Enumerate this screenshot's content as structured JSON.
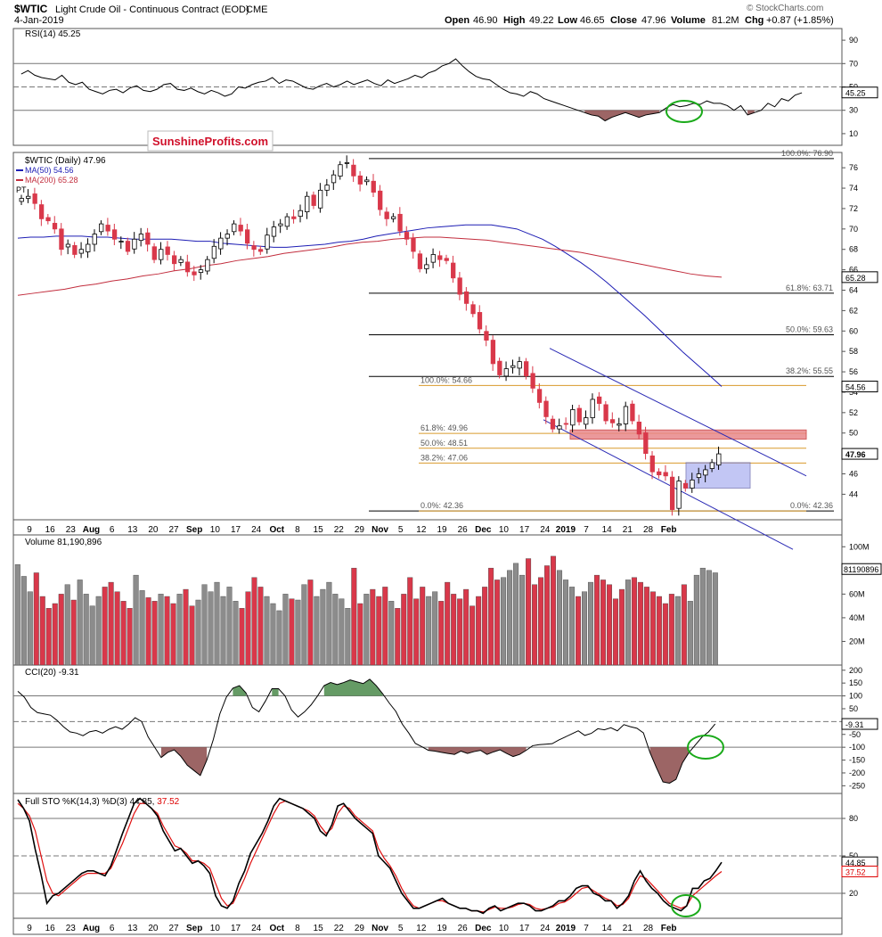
{
  "header": {
    "symbol": "$WTIC",
    "name": "Light Crude Oil - Continuous Contract (EOD)",
    "exchange": "CME",
    "watermark": "© StockCharts.com",
    "date": "4-Jan-2019",
    "open_label": "Open",
    "open": "46.90",
    "high_label": "High",
    "high": "49.22",
    "low_label": "Low",
    "low": "46.65",
    "close_label": "Close",
    "close": "47.96",
    "volume_label": "Volume",
    "volume": "81.2M",
    "chg_label": "Chg",
    "chg": "+0.87 (+1.85%)",
    "logo_text": "SunshineProfits.com"
  },
  "colors": {
    "up": "#8c8c8c",
    "down": "#d9384a",
    "ma50": "#1d1db4",
    "ma200": "#c22d3d",
    "fib": "#d99a2b",
    "channel": "#2b2bb5",
    "green": "#1aaa1a",
    "neg_fill": "#8b4a4a",
    "pos_fill": "#4a8a4a",
    "box": "#a9aef0",
    "zone": "#e8888a"
  },
  "x_axis": [
    "9",
    "16",
    "23",
    "Aug",
    "6",
    "13",
    "20",
    "27",
    "Sep",
    "10",
    "17",
    "24",
    "Oct",
    "8",
    "15",
    "22",
    "29",
    "Nov",
    "5",
    "12",
    "19",
    "26",
    "Dec",
    "10",
    "17",
    "24",
    "2019",
    "7",
    "14",
    "21",
    "28",
    "Feb"
  ],
  "chart_data": [
    {
      "type": "line",
      "panel": "RSI",
      "title": "RSI(14) 45.25",
      "current": "45.25",
      "y_ticks": [
        90,
        70,
        50,
        30,
        10
      ],
      "ylim": [
        0,
        100
      ],
      "guides": [
        70,
        50,
        30
      ],
      "values": [
        61,
        64,
        60,
        58,
        57,
        56,
        60,
        54,
        52,
        54,
        48,
        46,
        44,
        47,
        48,
        45,
        49,
        51,
        47,
        46,
        48,
        52,
        53,
        48,
        47,
        49,
        46,
        44,
        47,
        45,
        42,
        44,
        50,
        49,
        52,
        54,
        55,
        58,
        53,
        56,
        55,
        52,
        49,
        48,
        51,
        53,
        50,
        52,
        55,
        52,
        54,
        56,
        53,
        51,
        56,
        53,
        55,
        57,
        60,
        58,
        62,
        64,
        68,
        70,
        74,
        68,
        63,
        59,
        57,
        56,
        52,
        48,
        45,
        44,
        42,
        46,
        44,
        40,
        38,
        36,
        34,
        32,
        30,
        28,
        26,
        25,
        21,
        24,
        26,
        28,
        26,
        24,
        26,
        27,
        28,
        32,
        35,
        33,
        34,
        36,
        35,
        38,
        36,
        36,
        34,
        30,
        34,
        26,
        28,
        30,
        36,
        33,
        40,
        38,
        43,
        45
      ]
    },
    {
      "type": "candlestick",
      "panel": "Price",
      "title": "$WTIC (Daily) 47.96",
      "legend": [
        {
          "name": "MA(50) 54.56",
          "color": "#1d1db4"
        },
        {
          "name": "MA(200) 65.28",
          "color": "#c22d3d"
        }
      ],
      "left_truncated_label": "PT",
      "y_ticks": [
        76,
        74,
        72,
        70,
        68,
        66,
        64,
        62,
        60,
        58,
        56,
        54,
        52,
        50,
        48,
        46,
        44
      ],
      "ylim": [
        41.5,
        77.5
      ],
      "right_badges": [
        {
          "label": "65.28",
          "value": 65.28
        },
        {
          "label": "54.56",
          "value": 54.56
        },
        {
          "label": "47.96",
          "value": 47.96,
          "bold": true
        }
      ],
      "closes": [
        73.0,
        73.2,
        72.5,
        71.0,
        70.8,
        70.0,
        68.0,
        68.5,
        67.5,
        68.0,
        68.5,
        69.5,
        70.5,
        69.8,
        69.0,
        68.8,
        67.8,
        69.0,
        69.5,
        68.5,
        67.0,
        68.0,
        67.5,
        66.6,
        67.0,
        65.8,
        65.5,
        66.0,
        67.0,
        68.3,
        69.1,
        69.5,
        70.5,
        69.8,
        68.6,
        68.0,
        67.8,
        69.4,
        70.2,
        70.5,
        71.2,
        71.0,
        71.8,
        73.2,
        72.3,
        73.8,
        74.3,
        75.3,
        76.3,
        76.5,
        75.2,
        74.4,
        74.8,
        73.6,
        71.9,
        71.0,
        71.2,
        69.8,
        69.0,
        67.8,
        66.1,
        66.5,
        67.5,
        67.0,
        66.9,
        65.2,
        63.6,
        62.7,
        61.7,
        60.2,
        59.1,
        56.8,
        55.7,
        56.3,
        56.6,
        57.0,
        55.6,
        54.4,
        53.0,
        51.6,
        50.4,
        50.7,
        50.9,
        52.3,
        51.1,
        51.5,
        53.3,
        52.9,
        51.2,
        51.0,
        50.9,
        52.6,
        51.2,
        49.9,
        48.0,
        46.2,
        45.9,
        45.8,
        42.5,
        45.3,
        44.6,
        45.4,
        46.0,
        46.4,
        47.1,
        47.96
      ],
      "ma50": [
        69.1,
        69.2,
        69.2,
        69.3,
        69.3,
        69.3,
        69.2,
        69.2,
        69.1,
        69.0,
        69.0,
        69.0,
        69.0,
        68.9,
        68.8,
        68.8,
        68.6,
        68.5,
        68.4,
        68.3,
        68.2,
        68.2,
        68.3,
        68.4,
        68.5,
        68.7,
        68.8,
        69.0,
        69.3,
        69.5,
        69.7,
        69.9,
        70.1,
        70.2,
        70.3,
        70.4,
        70.4,
        70.4,
        70.2,
        70.0,
        69.5,
        69.0,
        68.3,
        67.5,
        66.7,
        65.8,
        64.8,
        63.7,
        62.6,
        61.5,
        60.3,
        59.1,
        57.9,
        56.8,
        55.7,
        54.56
      ],
      "ma200": [
        63.5,
        63.7,
        63.9,
        64.1,
        64.4,
        64.6,
        64.9,
        65.1,
        65.4,
        65.6,
        65.9,
        66.1,
        66.4,
        66.6,
        66.9,
        67.1,
        67.3,
        67.6,
        67.8,
        68.0,
        68.2,
        68.5,
        68.7,
        68.8,
        69.0,
        69.1,
        69.2,
        69.2,
        69.1,
        69.0,
        68.9,
        68.7,
        68.5,
        68.3,
        68.1,
        67.9,
        67.7,
        67.4,
        67.1,
        66.8,
        66.5,
        66.2,
        65.9,
        65.6,
        65.4,
        65.28
      ],
      "fib_set_1": [
        {
          "label": "100.0%: 76.90",
          "value": 76.9
        },
        {
          "label": "61.8%: 63.71",
          "value": 63.71
        },
        {
          "label": "50.0%: 59.63",
          "value": 59.63
        },
        {
          "label": "38.2%: 55.55",
          "value": 55.55
        },
        {
          "label": "0.0%: 42.36",
          "value": 42.36
        }
      ],
      "fib_set_2": [
        {
          "label": "100.0%: 54.66",
          "value": 54.66
        },
        {
          "label": "61.8%: 49.96",
          "value": 49.96
        },
        {
          "label": "50.0%: 48.51",
          "value": 48.51
        },
        {
          "label": "38.2%: 47.06",
          "value": 47.06
        },
        {
          "label": "0.0%: 42.36",
          "value": 42.36
        }
      ],
      "resistance_zone": [
        49.4,
        50.3
      ],
      "consolidation_box": [
        44.6,
        47.1
      ]
    },
    {
      "type": "bar",
      "panel": "Volume",
      "title": "Volume 81,190,896",
      "current": "81190896",
      "y_ticks": [
        "100M",
        "80M",
        "60M",
        "40M",
        "20M"
      ],
      "ylim": [
        0,
        110
      ],
      "unit": "M",
      "values": [
        85,
        75,
        62,
        78,
        58,
        48,
        52,
        60,
        68,
        55,
        72,
        60,
        50,
        58,
        66,
        70,
        62,
        54,
        48,
        76,
        63,
        57,
        54,
        60,
        58,
        52,
        60,
        64,
        50,
        55,
        68,
        62,
        70,
        58,
        66,
        54,
        48,
        62,
        74,
        66,
        58,
        52,
        46,
        60,
        56,
        55,
        68,
        72,
        58,
        64,
        70,
        60,
        56,
        48,
        82,
        52,
        60,
        64,
        58,
        66,
        54,
        48,
        60,
        74,
        56,
        66,
        58,
        62,
        54,
        70,
        60,
        56,
        64,
        50,
        58,
        66,
        82,
        72,
        74,
        80,
        86,
        76,
        90,
        68,
        74,
        84,
        92,
        80,
        72,
        66,
        58,
        62,
        70,
        76,
        72,
        68,
        56,
        64,
        72,
        74,
        70,
        66,
        62,
        58,
        52,
        60,
        58,
        68,
        54,
        76,
        82,
        80,
        78
      ]
    },
    {
      "type": "line",
      "panel": "CCI",
      "title": "CCI(20) -9.31",
      "current": "-9.31",
      "y_ticks": [
        200,
        150,
        100,
        50,
        -50,
        -100,
        -150,
        -200,
        -250
      ],
      "ylim": [
        -280,
        220
      ],
      "guides": [
        100,
        0,
        -100
      ],
      "values": [
        118,
        95,
        55,
        35,
        30,
        25,
        5,
        -20,
        -40,
        -45,
        -55,
        -40,
        -35,
        -45,
        -30,
        -20,
        -30,
        -10,
        15,
        0,
        -60,
        -100,
        -140,
        -120,
        -110,
        -135,
        -170,
        -190,
        -210,
        -150,
        -70,
        30,
        95,
        130,
        140,
        112,
        55,
        38,
        80,
        128,
        128,
        100,
        45,
        18,
        38,
        65,
        100,
        140,
        152,
        144,
        152,
        162,
        155,
        148,
        165,
        140,
        108,
        72,
        40,
        -10,
        -45,
        -85,
        -98,
        -112,
        -115,
        -120,
        -124,
        -128,
        -115,
        -124,
        -117,
        -112,
        -128,
        -118,
        -110,
        -124,
        -136,
        -128,
        -112,
        -94,
        -90,
        -88,
        -86,
        -72,
        -60,
        -48,
        -36,
        -54,
        -46,
        -28,
        -32,
        -24,
        -36,
        -12,
        -20,
        -26,
        -44,
        -120,
        -180,
        -235,
        -240,
        -225,
        -160,
        -120,
        -90,
        -60,
        -40,
        -9.31
      ]
    },
    {
      "type": "line",
      "panel": "Full STO",
      "title": "Full STO %K(14,3) %D(3) 44.85, 37.52",
      "k_value": "44.85",
      "d_value": "37.52",
      "y_ticks": [
        80,
        50,
        20
      ],
      "ylim": [
        0,
        100
      ],
      "guides": [
        80,
        50,
        20
      ],
      "series": [
        {
          "name": "%K",
          "values": [
            95,
            88,
            78,
            55,
            35,
            12,
            18,
            20,
            24,
            28,
            32,
            36,
            38,
            38,
            36,
            34,
            42,
            55,
            68,
            80,
            92,
            96,
            92,
            88,
            82,
            70,
            62,
            54,
            56,
            50,
            44,
            46,
            42,
            36,
            18,
            10,
            8,
            14,
            28,
            38,
            52,
            60,
            68,
            78,
            90,
            96,
            94,
            92,
            90,
            88,
            84,
            80,
            70,
            66,
            75,
            90,
            92,
            86,
            80,
            76,
            72,
            68,
            50,
            45,
            40,
            30,
            20,
            14,
            8,
            8,
            10,
            12,
            14,
            16,
            12,
            10,
            8,
            8,
            6,
            6,
            4,
            8,
            10,
            6,
            8,
            10,
            12,
            12,
            10,
            6,
            6,
            8,
            10,
            14,
            14,
            18,
            24,
            26,
            26,
            20,
            18,
            14,
            14,
            8,
            12,
            18,
            30,
            38,
            30,
            24,
            20,
            14,
            10,
            8,
            6,
            10,
            24,
            24,
            30,
            32,
            38,
            44.85
          ]
        },
        {
          "name": "%D",
          "values": [
            92,
            88,
            82,
            70,
            50,
            30,
            20,
            18,
            22,
            26,
            30,
            34,
            36,
            36,
            36,
            36,
            40,
            50,
            60,
            72,
            84,
            92,
            92,
            88,
            84,
            74,
            66,
            58,
            56,
            52,
            46,
            46,
            44,
            40,
            28,
            16,
            10,
            12,
            22,
            32,
            44,
            54,
            64,
            74,
            84,
            92,
            94,
            92,
            90,
            88,
            86,
            82,
            74,
            68,
            72,
            84,
            90,
            88,
            82,
            78,
            74,
            70,
            56,
            48,
            42,
            34,
            24,
            16,
            10,
            8,
            10,
            12,
            14,
            14,
            12,
            10,
            8,
            8,
            6,
            6,
            5,
            7,
            9,
            8,
            8,
            9,
            11,
            12,
            11,
            8,
            7,
            8,
            9,
            12,
            13,
            16,
            20,
            24,
            25,
            22,
            19,
            16,
            14,
            10,
            11,
            16,
            26,
            34,
            32,
            27,
            22,
            17,
            12,
            10,
            8,
            10,
            18,
            22,
            26,
            30,
            34,
            37.52
          ]
        }
      ]
    }
  ]
}
